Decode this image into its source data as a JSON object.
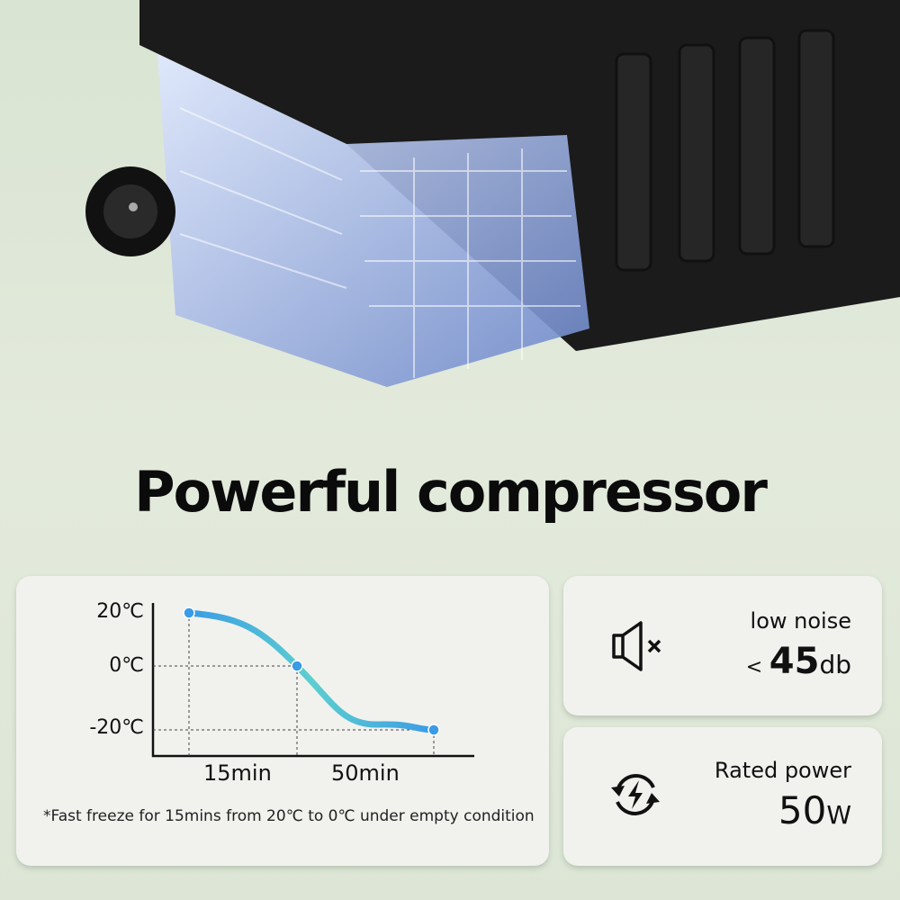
{
  "title": "Powerful compressor",
  "chart_data": {
    "type": "line",
    "y_ticks": [
      "20℃",
      "0℃",
      "-20℃"
    ],
    "y_values": [
      20,
      0,
      -20
    ],
    "x_labels": [
      "15min",
      "50min"
    ],
    "points": [
      20,
      0,
      -20
    ],
    "line_color": "#3a9be6",
    "mid_color": "#5ccfcf"
  },
  "note": "*Fast freeze for 15mins from 20℃ to 0℃ under empty condition",
  "noise": {
    "icon": "speaker-mute-icon",
    "label": "low noise",
    "prefix": "<",
    "value": "45",
    "unit": "db"
  },
  "power": {
    "icon": "recycle-bolt-icon",
    "label": "Rated power",
    "value": "50",
    "unit": "W"
  }
}
